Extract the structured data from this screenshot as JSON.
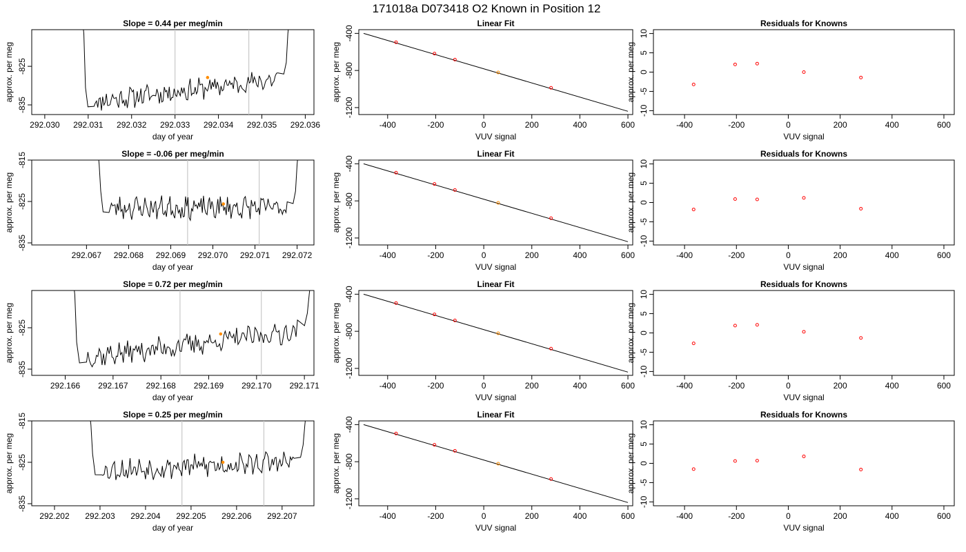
{
  "page_title": "171018a     D073418   O2 Known in Position  12",
  "chart_data": [
    {
      "type": "line",
      "title": "Slope =  0.44  per meg/min",
      "xlabel": "day of year",
      "ylabel": "approx. per meg",
      "xlim": [
        292.0297,
        292.0362
      ],
      "ylim": [
        -837.5,
        -815.5
      ],
      "xticks": [
        "292.030",
        "292.031",
        "292.032",
        "292.033",
        "292.034",
        "292.035",
        "292.036"
      ],
      "yticks": [
        "-825",
        "-835"
      ],
      "vlines": [
        292.033,
        292.0347
      ],
      "series": [
        {
          "start": 292.0309,
          "end": 292.0356,
          "baseline": -834.5,
          "trend": 6.5,
          "seed": 11
        }
      ],
      "marker": {
        "x": 292.03375,
        "y": -827.9,
        "color": "#ff8c00"
      }
    },
    {
      "type": "scatter",
      "title": "Linear Fit",
      "xlabel": "VUV signal",
      "ylabel": "approx. per meg",
      "xlim": [
        -520,
        620
      ],
      "ylim": [
        -1275,
        -360
      ],
      "xticks": [
        "-400",
        "-200",
        "0",
        "200",
        "400",
        "600"
      ],
      "yticks": [
        "-400",
        "-800",
        "-1200"
      ],
      "fit_line": {
        "x": [
          -500,
          600
        ],
        "y": [
          -400,
          -1240
        ]
      },
      "points": [
        {
          "x": -365,
          "y": -496,
          "color": "#ff0000"
        },
        {
          "x": -205,
          "y": -618,
          "color": "#ff0000"
        },
        {
          "x": -120,
          "y": -683,
          "color": "#ff0000"
        },
        {
          "x": 60,
          "y": -821,
          "color": "#ff8c00"
        },
        {
          "x": 280,
          "y": -987,
          "color": "#ff0000"
        }
      ]
    },
    {
      "type": "scatter",
      "title": "Residuals for Knowns",
      "xlabel": "VUV signal",
      "ylabel": "approx. per meg",
      "xlim": [
        -520,
        640
      ],
      "ylim": [
        -11,
        11
      ],
      "xticks": [
        "-400",
        "-200",
        "0",
        "200",
        "400",
        "600"
      ],
      "yticks": [
        "10",
        "5",
        "0",
        "-5",
        "-10"
      ],
      "points": [
        {
          "x": -365,
          "y": -3.2,
          "color": "#ff0000"
        },
        {
          "x": -205,
          "y": 2.0,
          "color": "#ff0000"
        },
        {
          "x": -120,
          "y": 2.2,
          "color": "#ff0000"
        },
        {
          "x": 60,
          "y": 0.0,
          "color": "#ff0000"
        },
        {
          "x": 280,
          "y": -1.4,
          "color": "#ff0000"
        }
      ]
    },
    {
      "type": "line",
      "title": "Slope =  -0.06  per meg/min",
      "xlabel": "day of year",
      "ylabel": "approx. per meg",
      "xlim": [
        292.0657,
        292.0724
      ],
      "ylim": [
        -835.5,
        -815
      ],
      "xticks": [
        "292.067",
        "292.068",
        "292.069",
        "292.070",
        "292.071",
        "292.072"
      ],
      "yticks": [
        "-815",
        "-825",
        "-835"
      ],
      "vlines": [
        292.0694,
        292.0711
      ],
      "series": [
        {
          "start": 292.0673,
          "end": 292.072,
          "baseline": -826.5,
          "trend": 0.0,
          "seed": 23
        }
      ],
      "marker": {
        "x": 292.07025,
        "y": -825.6,
        "color": "#ff8c00"
      }
    },
    {
      "type": "scatter",
      "title": "Linear Fit",
      "xlabel": "VUV signal",
      "ylabel": "approx. per meg",
      "xlim": [
        -520,
        620
      ],
      "ylim": [
        -1275,
        -360
      ],
      "xticks": [
        "-400",
        "-200",
        "0",
        "200",
        "400",
        "600"
      ],
      "yticks": [
        "-400",
        "-800",
        "-1200"
      ],
      "fit_line": {
        "x": [
          -500,
          600
        ],
        "y": [
          -400,
          -1240
        ]
      },
      "points": [
        {
          "x": -365,
          "y": -496,
          "color": "#ff0000"
        },
        {
          "x": -205,
          "y": -618,
          "color": "#ff0000"
        },
        {
          "x": -120,
          "y": -683,
          "color": "#ff0000"
        },
        {
          "x": 60,
          "y": -821,
          "color": "#ff8c00"
        },
        {
          "x": 280,
          "y": -987,
          "color": "#ff0000"
        }
      ]
    },
    {
      "type": "scatter",
      "title": "Residuals for Knowns",
      "xlabel": "VUV signal",
      "ylabel": "approx. per meg",
      "xlim": [
        -520,
        640
      ],
      "ylim": [
        -11,
        11
      ],
      "xticks": [
        "-400",
        "-200",
        "0",
        "200",
        "400",
        "600"
      ],
      "yticks": [
        "10",
        "5",
        "0",
        "-5",
        "-10"
      ],
      "points": [
        {
          "x": -365,
          "y": -1.8,
          "color": "#ff0000"
        },
        {
          "x": -205,
          "y": 0.9,
          "color": "#ff0000"
        },
        {
          "x": -120,
          "y": 0.8,
          "color": "#ff0000"
        },
        {
          "x": 60,
          "y": 1.2,
          "color": "#ff0000"
        },
        {
          "x": 280,
          "y": -1.6,
          "color": "#ff0000"
        }
      ]
    },
    {
      "type": "line",
      "title": "Slope =  0.72  per meg/min",
      "xlabel": "day of year",
      "ylabel": "approx. per meg",
      "xlim": [
        292.1653,
        292.1712
      ],
      "ylim": [
        -836.5,
        -816
      ],
      "xticks": [
        "292.166",
        "292.167",
        "292.168",
        "292.169",
        "292.170",
        "292.171"
      ],
      "yticks": [
        "-825",
        "-835"
      ],
      "vlines": [
        292.1684,
        292.1701
      ],
      "series": [
        {
          "start": 292.1662,
          "end": 292.1711,
          "baseline": -832.5,
          "trend": 7.0,
          "seed": 37
        }
      ],
      "marker": {
        "x": 292.16925,
        "y": -826.5,
        "color": "#ff8c00"
      }
    },
    {
      "type": "scatter",
      "title": "Linear Fit",
      "xlabel": "VUV signal",
      "ylabel": "approx. per meg",
      "xlim": [
        -520,
        620
      ],
      "ylim": [
        -1275,
        -360
      ],
      "xticks": [
        "-400",
        "-200",
        "0",
        "200",
        "400",
        "600"
      ],
      "yticks": [
        "-400",
        "-800",
        "-1200"
      ],
      "fit_line": {
        "x": [
          -500,
          600
        ],
        "y": [
          -400,
          -1240
        ]
      },
      "points": [
        {
          "x": -365,
          "y": -496,
          "color": "#ff0000"
        },
        {
          "x": -205,
          "y": -618,
          "color": "#ff0000"
        },
        {
          "x": -120,
          "y": -683,
          "color": "#ff0000"
        },
        {
          "x": 60,
          "y": -821,
          "color": "#ff8c00"
        },
        {
          "x": 280,
          "y": -987,
          "color": "#ff0000"
        }
      ]
    },
    {
      "type": "scatter",
      "title": "Residuals for Knowns",
      "xlabel": "VUV signal",
      "ylabel": "approx. per meg",
      "xlim": [
        -520,
        640
      ],
      "ylim": [
        -11,
        11
      ],
      "xticks": [
        "-400",
        "-200",
        "0",
        "200",
        "400",
        "600"
      ],
      "yticks": [
        "10",
        "5",
        "0",
        "-5",
        "-10"
      ],
      "points": [
        {
          "x": -365,
          "y": -2.7,
          "color": "#ff0000"
        },
        {
          "x": -205,
          "y": 1.9,
          "color": "#ff0000"
        },
        {
          "x": -120,
          "y": 2.1,
          "color": "#ff0000"
        },
        {
          "x": 60,
          "y": 0.3,
          "color": "#ff0000"
        },
        {
          "x": 280,
          "y": -1.3,
          "color": "#ff0000"
        }
      ]
    },
    {
      "type": "line",
      "title": "Slope =  0.25  per meg/min",
      "xlabel": "day of year",
      "ylabel": "approx. per meg",
      "xlim": [
        292.2015,
        292.2077
      ],
      "ylim": [
        -835.5,
        -815
      ],
      "xticks": [
        "292.202",
        "292.203",
        "292.204",
        "292.205",
        "292.206",
        "292.207"
      ],
      "yticks": [
        "-815",
        "-825",
        "-835"
      ],
      "vlines": [
        292.2048,
        292.2066
      ],
      "series": [
        {
          "start": 292.2028,
          "end": 292.2075,
          "baseline": -827.0,
          "trend": 2.2,
          "seed": 53
        }
      ],
      "marker": {
        "x": 292.2057,
        "y": -825.0,
        "color": "#ff8c00"
      }
    },
    {
      "type": "scatter",
      "title": "Linear Fit",
      "xlabel": "VUV signal",
      "ylabel": "approx. per meg",
      "xlim": [
        -520,
        620
      ],
      "ylim": [
        -1275,
        -360
      ],
      "xticks": [
        "-400",
        "-200",
        "0",
        "200",
        "400",
        "600"
      ],
      "yticks": [
        "-400",
        "-800",
        "-1200"
      ],
      "fit_line": {
        "x": [
          -500,
          600
        ],
        "y": [
          -400,
          -1240
        ]
      },
      "points": [
        {
          "x": -365,
          "y": -496,
          "color": "#ff0000"
        },
        {
          "x": -205,
          "y": -618,
          "color": "#ff0000"
        },
        {
          "x": -120,
          "y": -683,
          "color": "#ff0000"
        },
        {
          "x": 60,
          "y": -821,
          "color": "#ff8c00"
        },
        {
          "x": 280,
          "y": -987,
          "color": "#ff0000"
        }
      ]
    },
    {
      "type": "scatter",
      "title": "Residuals for Knowns",
      "xlabel": "VUV signal",
      "ylabel": "approx. per meg",
      "xlim": [
        -520,
        640
      ],
      "ylim": [
        -11,
        11
      ],
      "xticks": [
        "-400",
        "-200",
        "0",
        "200",
        "400",
        "600"
      ],
      "yticks": [
        "10",
        "5",
        "0",
        "-5",
        "-10"
      ],
      "points": [
        {
          "x": -365,
          "y": -1.5,
          "color": "#ff0000"
        },
        {
          "x": -205,
          "y": 0.6,
          "color": "#ff0000"
        },
        {
          "x": -120,
          "y": 0.7,
          "color": "#ff0000"
        },
        {
          "x": 60,
          "y": 1.8,
          "color": "#ff0000"
        },
        {
          "x": 280,
          "y": -1.6,
          "color": "#ff0000"
        }
      ]
    }
  ]
}
